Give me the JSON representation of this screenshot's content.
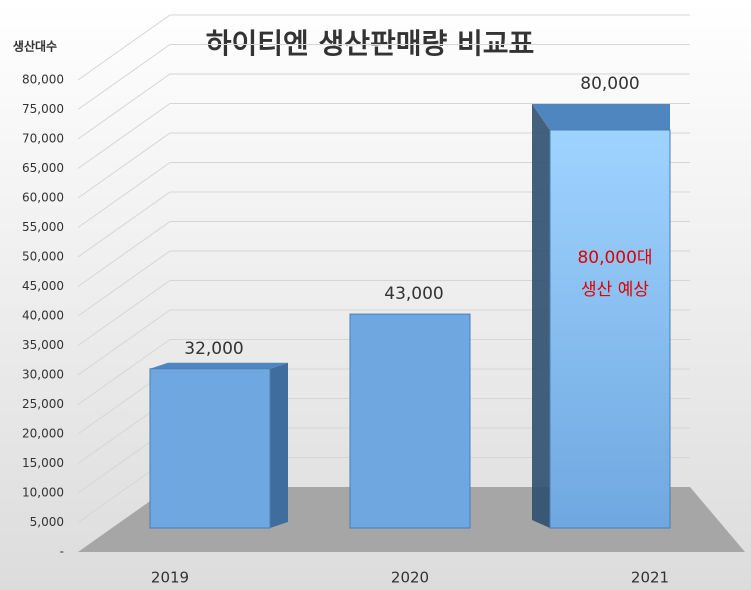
{
  "chart_data": {
    "type": "bar",
    "title": "하이티엔 생산판매량 비교표",
    "y_label": "생산대수",
    "categories": [
      "2019",
      "2020",
      "2021"
    ],
    "values": [
      32000,
      43000,
      80000
    ],
    "value_labels": [
      "32,000",
      "43,000",
      "80,000"
    ],
    "color": "#6fa8e0",
    "annotation": [
      "80,000대",
      "생산 예상"
    ],
    "annotation_color": "#e00000",
    "ylim": [
      0,
      80000
    ],
    "yticks": [
      {
        "value": 0,
        "label": "-"
      },
      {
        "value": 5000,
        "label": "5,000"
      },
      {
        "value": 10000,
        "label": "10,000"
      },
      {
        "value": 15000,
        "label": "15,000"
      },
      {
        "value": 20000,
        "label": "20,000"
      },
      {
        "value": 25000,
        "label": "25,000"
      },
      {
        "value": 30000,
        "label": "30,000"
      },
      {
        "value": 35000,
        "label": "35,000"
      },
      {
        "value": 40000,
        "label": "40,000"
      },
      {
        "value": 45000,
        "label": "45,000"
      },
      {
        "value": 50000,
        "label": "50,000"
      },
      {
        "value": 55000,
        "label": "55,000"
      },
      {
        "value": 60000,
        "label": "60,000"
      },
      {
        "value": 65000,
        "label": "65,000"
      },
      {
        "value": 70000,
        "label": "70,000"
      },
      {
        "value": 75000,
        "label": "75,000"
      },
      {
        "value": 80000,
        "label": "80,000"
      }
    ],
    "grid": true
  }
}
